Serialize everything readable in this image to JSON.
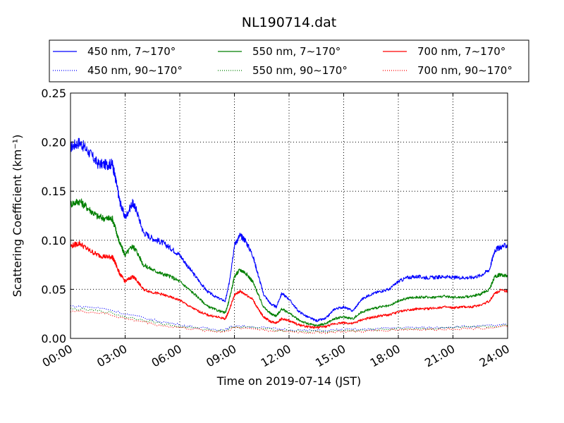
{
  "chart_data": {
    "type": "line",
    "title": "NL190714.dat",
    "xlabel": "Time on 2019-07-14 (JST)",
    "ylabel": "Scattering Coefficient (km⁻¹)",
    "x_ticks": [
      "00:00",
      "03:00",
      "06:00",
      "09:00",
      "12:00",
      "15:00",
      "18:00",
      "21:00",
      "24:00"
    ],
    "y_ticks": [
      "0.00",
      "0.05",
      "0.10",
      "0.15",
      "0.20",
      "0.25"
    ],
    "xlim": [
      0,
      24
    ],
    "ylim": [
      0,
      0.25
    ],
    "x_unit": "hours since 00:00",
    "grid": true,
    "legend_position": "top",
    "series": [
      {
        "name": "450 nm, 7∼170°",
        "color": "#0000ff",
        "style": "solid",
        "x": [
          0,
          0.5,
          1,
          1.5,
          2,
          2.3,
          2.5,
          2.7,
          3,
          3.4,
          3.6,
          4,
          4.5,
          5,
          5.5,
          6,
          6.5,
          7,
          7.5,
          8,
          8.5,
          8.7,
          9,
          9.3,
          9.6,
          10,
          10.3,
          10.6,
          11,
          11.3,
          11.6,
          12,
          12.5,
          13,
          13.5,
          14,
          14.5,
          15,
          15.5,
          16,
          16.5,
          17,
          17.5,
          18,
          18.5,
          19,
          19.5,
          20,
          20.5,
          21,
          21.5,
          22,
          22.5,
          23,
          23.3,
          23.6,
          24
        ],
        "y": [
          0.195,
          0.2,
          0.19,
          0.178,
          0.177,
          0.178,
          0.16,
          0.14,
          0.123,
          0.138,
          0.132,
          0.108,
          0.102,
          0.098,
          0.092,
          0.085,
          0.072,
          0.06,
          0.048,
          0.042,
          0.038,
          0.055,
          0.095,
          0.105,
          0.1,
          0.085,
          0.065,
          0.045,
          0.035,
          0.032,
          0.046,
          0.04,
          0.028,
          0.022,
          0.018,
          0.02,
          0.03,
          0.032,
          0.028,
          0.04,
          0.045,
          0.048,
          0.05,
          0.058,
          0.062,
          0.063,
          0.062,
          0.062,
          0.063,
          0.062,
          0.062,
          0.062,
          0.064,
          0.07,
          0.09,
          0.093,
          0.095
        ]
      },
      {
        "name": "550 nm, 7∼170°",
        "color": "#007f00",
        "style": "solid",
        "x": [
          0,
          0.5,
          1,
          1.5,
          2,
          2.3,
          2.5,
          2.7,
          3,
          3.4,
          3.6,
          4,
          4.5,
          5,
          5.5,
          6,
          6.5,
          7,
          7.5,
          8,
          8.5,
          8.7,
          9,
          9.3,
          9.6,
          10,
          10.3,
          10.6,
          11,
          11.3,
          11.6,
          12,
          12.5,
          13,
          13.5,
          14,
          14.5,
          15,
          15.5,
          16,
          16.5,
          17,
          17.5,
          18,
          18.5,
          19,
          19.5,
          20,
          20.5,
          21,
          21.5,
          22,
          22.5,
          23,
          23.3,
          23.6,
          24
        ],
        "y": [
          0.137,
          0.14,
          0.132,
          0.124,
          0.122,
          0.122,
          0.11,
          0.097,
          0.085,
          0.094,
          0.09,
          0.075,
          0.07,
          0.066,
          0.063,
          0.058,
          0.05,
          0.042,
          0.033,
          0.029,
          0.026,
          0.038,
          0.063,
          0.07,
          0.067,
          0.058,
          0.045,
          0.032,
          0.025,
          0.023,
          0.03,
          0.026,
          0.019,
          0.015,
          0.013,
          0.015,
          0.02,
          0.022,
          0.02,
          0.027,
          0.03,
          0.032,
          0.033,
          0.038,
          0.041,
          0.042,
          0.042,
          0.042,
          0.043,
          0.042,
          0.042,
          0.043,
          0.045,
          0.05,
          0.063,
          0.065,
          0.064
        ]
      },
      {
        "name": "700 nm, 7∼170°",
        "color": "#ff0000",
        "style": "solid",
        "x": [
          0,
          0.5,
          1,
          1.5,
          2,
          2.3,
          2.5,
          2.7,
          3,
          3.4,
          3.6,
          4,
          4.5,
          5,
          5.5,
          6,
          6.5,
          7,
          7.5,
          8,
          8.5,
          8.7,
          9,
          9.3,
          9.6,
          10,
          10.3,
          10.6,
          11,
          11.3,
          11.6,
          12,
          12.5,
          13,
          13.5,
          14,
          14.5,
          15,
          15.5,
          16,
          16.5,
          17,
          17.5,
          18,
          18.5,
          19,
          19.5,
          20,
          20.5,
          21,
          21.5,
          22,
          22.5,
          23,
          23.3,
          23.6,
          24
        ],
        "y": [
          0.094,
          0.097,
          0.09,
          0.085,
          0.083,
          0.083,
          0.075,
          0.066,
          0.058,
          0.063,
          0.06,
          0.05,
          0.047,
          0.045,
          0.042,
          0.039,
          0.033,
          0.028,
          0.024,
          0.022,
          0.02,
          0.028,
          0.044,
          0.048,
          0.045,
          0.04,
          0.03,
          0.022,
          0.017,
          0.016,
          0.02,
          0.018,
          0.014,
          0.012,
          0.011,
          0.012,
          0.015,
          0.016,
          0.015,
          0.019,
          0.021,
          0.023,
          0.024,
          0.027,
          0.029,
          0.03,
          0.03,
          0.031,
          0.032,
          0.031,
          0.032,
          0.032,
          0.034,
          0.038,
          0.046,
          0.049,
          0.048
        ]
      },
      {
        "name": "450 nm, 90∼170°",
        "color": "#0000ff",
        "style": "dotted",
        "x": [
          0,
          1,
          2,
          3,
          4,
          5,
          6,
          7,
          8,
          8.5,
          9,
          10,
          11,
          12,
          13,
          14,
          15,
          16,
          17,
          18,
          19,
          20,
          21,
          22,
          23,
          24
        ],
        "y": [
          0.033,
          0.032,
          0.03,
          0.025,
          0.021,
          0.017,
          0.014,
          0.011,
          0.009,
          0.009,
          0.013,
          0.012,
          0.01,
          0.009,
          0.008,
          0.008,
          0.009,
          0.009,
          0.01,
          0.011,
          0.011,
          0.011,
          0.012,
          0.012,
          0.013,
          0.014
        ]
      },
      {
        "name": "550 nm, 90∼170°",
        "color": "#007f00",
        "style": "dotted",
        "x": [
          0,
          1,
          2,
          3,
          4,
          5,
          6,
          7,
          8,
          8.5,
          9,
          10,
          11,
          12,
          13,
          14,
          15,
          16,
          17,
          18,
          19,
          20,
          21,
          22,
          23,
          24
        ],
        "y": [
          0.03,
          0.029,
          0.027,
          0.022,
          0.019,
          0.015,
          0.012,
          0.01,
          0.008,
          0.008,
          0.012,
          0.011,
          0.009,
          0.008,
          0.007,
          0.007,
          0.008,
          0.008,
          0.009,
          0.01,
          0.01,
          0.01,
          0.011,
          0.011,
          0.012,
          0.013
        ]
      },
      {
        "name": "700 nm, 90∼170°",
        "color": "#ff0000",
        "style": "dotted",
        "x": [
          0,
          1,
          2,
          3,
          4,
          5,
          6,
          7,
          8,
          8.5,
          9,
          10,
          11,
          12,
          13,
          14,
          15,
          16,
          17,
          18,
          19,
          20,
          21,
          22,
          23,
          24
        ],
        "y": [
          0.028,
          0.027,
          0.025,
          0.02,
          0.017,
          0.013,
          0.011,
          0.009,
          0.007,
          0.007,
          0.011,
          0.01,
          0.008,
          0.007,
          0.006,
          0.006,
          0.007,
          0.007,
          0.008,
          0.009,
          0.009,
          0.009,
          0.01,
          0.01,
          0.011,
          0.012
        ]
      }
    ]
  }
}
